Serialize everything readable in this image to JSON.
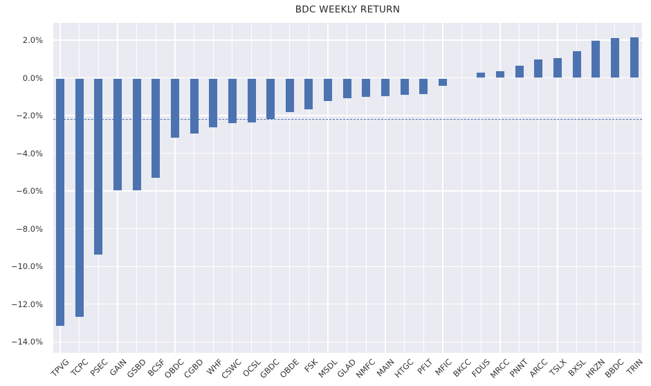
{
  "chart_data": {
    "type": "bar",
    "title": "BDC WEEKLY RETURN",
    "xlabel": "",
    "ylabel": "",
    "units": "%",
    "grid": true,
    "legend": false,
    "categories": [
      "TPVG",
      "TCPC",
      "PSEC",
      "GAIN",
      "GSBD",
      "BCSF",
      "OBDC",
      "CGBD",
      "WHF",
      "CSWC",
      "OCSL",
      "GBDC",
      "OBDE",
      "FSK",
      "MSDL",
      "GLAD",
      "NMFC",
      "MAIN",
      "HTGC",
      "PFLT",
      "MFIC",
      "BKCC",
      "FDUS",
      "MRCC",
      "PNNT",
      "ARCC",
      "TSLX",
      "BXSL",
      "HRZN",
      "BBDC",
      "TRIN"
    ],
    "values": [
      -13.2,
      -12.7,
      -9.4,
      -6.0,
      -6.0,
      -5.35,
      -3.2,
      -3.0,
      -2.65,
      -2.45,
      -2.4,
      -2.2,
      -1.85,
      -1.7,
      -1.25,
      -1.1,
      -1.05,
      -1.0,
      -0.95,
      -0.9,
      -0.45,
      0.0,
      0.3,
      0.4,
      0.7,
      1.0,
      1.1,
      1.45,
      2.0,
      2.15,
      2.2
    ],
    "series_name": "weekly_return_pct",
    "ylim": [
      -14.58,
      2.92
    ],
    "ytick_values": [
      2,
      0,
      -2,
      -4,
      -6,
      -8,
      -10,
      -12,
      -14
    ],
    "ytick_labels": [
      "2.0%",
      "0.0%",
      "−2.0%",
      "−4.0%",
      "−6.0%",
      "−8.0%",
      "−10.0%",
      "−12.0%",
      "−14.0%"
    ],
    "avg_line": {
      "value": -2.18,
      "style": "dashed"
    },
    "colors": {
      "bar": "#4c72b0",
      "bar_edge": "#ffffff",
      "avg_line": "#4c72b0",
      "plot_background": "#eaeaf2",
      "grid": "#ffffff",
      "figure_background": "#ffffff",
      "text": "#262626"
    }
  }
}
